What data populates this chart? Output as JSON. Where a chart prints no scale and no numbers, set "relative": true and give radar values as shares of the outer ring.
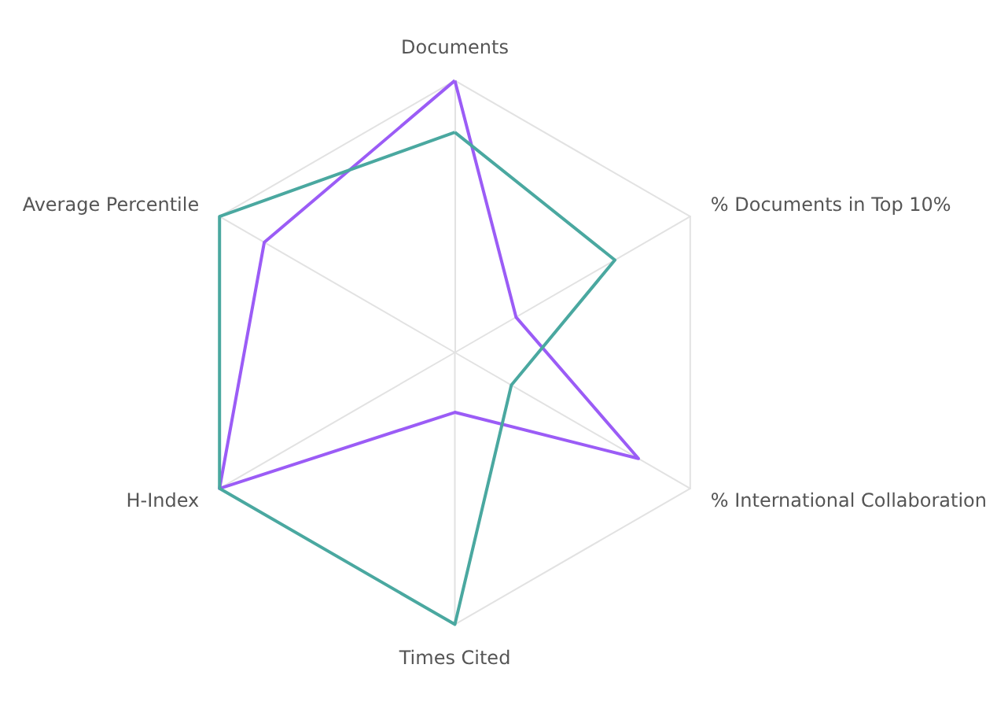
{
  "chart_data": {
    "type": "radar",
    "relative": true,
    "grid": true,
    "marker": "none",
    "categories": [
      "Documents",
      "% Documents in Top 10%",
      "% International Collaboration",
      "Times Cited",
      "H-Index",
      "Average Percentile"
    ],
    "series": [
      {
        "color": "#9b5cf6",
        "values": [
          1.0,
          0.26,
          0.78,
          0.22,
          1.0,
          0.81
        ]
      },
      {
        "color": "#4aa8a0",
        "values": [
          0.81,
          0.68,
          0.24,
          1.0,
          1.0,
          1.0
        ]
      }
    ]
  }
}
